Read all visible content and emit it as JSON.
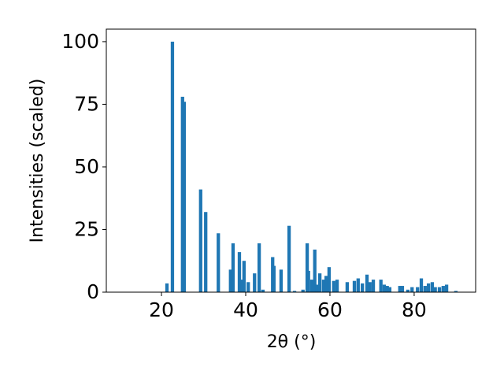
{
  "chart_data": {
    "type": "bar",
    "xlabel": "2θ (°)",
    "ylabel": "Intensities (scaled)",
    "color": "#1f77b4",
    "bar_width": 0.8,
    "x": [
      21.3,
      22.6,
      25.0,
      25.4,
      29.3,
      30.5,
      33.5,
      36.4,
      37.0,
      38.5,
      39.1,
      39.6,
      40.6,
      42.1,
      43.2,
      44.1,
      46.4,
      46.7,
      48.4,
      50.3,
      51.6,
      53.6,
      54.6,
      54.9,
      55.7,
      56.4,
      57.0,
      57.6,
      58.5,
      59.1,
      59.8,
      60.9,
      61.7,
      64.1,
      65.8,
      66.7,
      67.7,
      68.8,
      69.5,
      70.3,
      72.1,
      72.9,
      73.6,
      74.2,
      76.6,
      77.2,
      78.5,
      79.5,
      80.8,
      81.7,
      82.6,
      83.4,
      84.3,
      85.0,
      86.0,
      86.9,
      87.7,
      89.9
    ],
    "values": [
      3.5,
      100,
      78,
      76,
      41,
      32,
      23.5,
      9,
      19.5,
      16,
      5,
      12.5,
      4,
      7.5,
      19.5,
      1,
      14,
      10.5,
      9,
      26.5,
      0.5,
      1,
      19.5,
      8.5,
      5,
      17,
      3,
      7.5,
      5,
      6.5,
      10,
      4.5,
      5,
      4,
      4.5,
      5.5,
      3.5,
      7,
      4,
      5,
      5,
      3,
      2.5,
      2,
      2.5,
      2.5,
      1,
      2,
      2,
      5.5,
      2.5,
      3.5,
      4,
      2,
      2,
      2.5,
      3,
      0.5
    ],
    "xlim": [
      6.9,
      94.6
    ],
    "ylim": [
      0,
      105
    ],
    "xticks": [
      20,
      40,
      60,
      80
    ],
    "yticks": [
      0,
      25,
      50,
      75,
      100
    ]
  }
}
